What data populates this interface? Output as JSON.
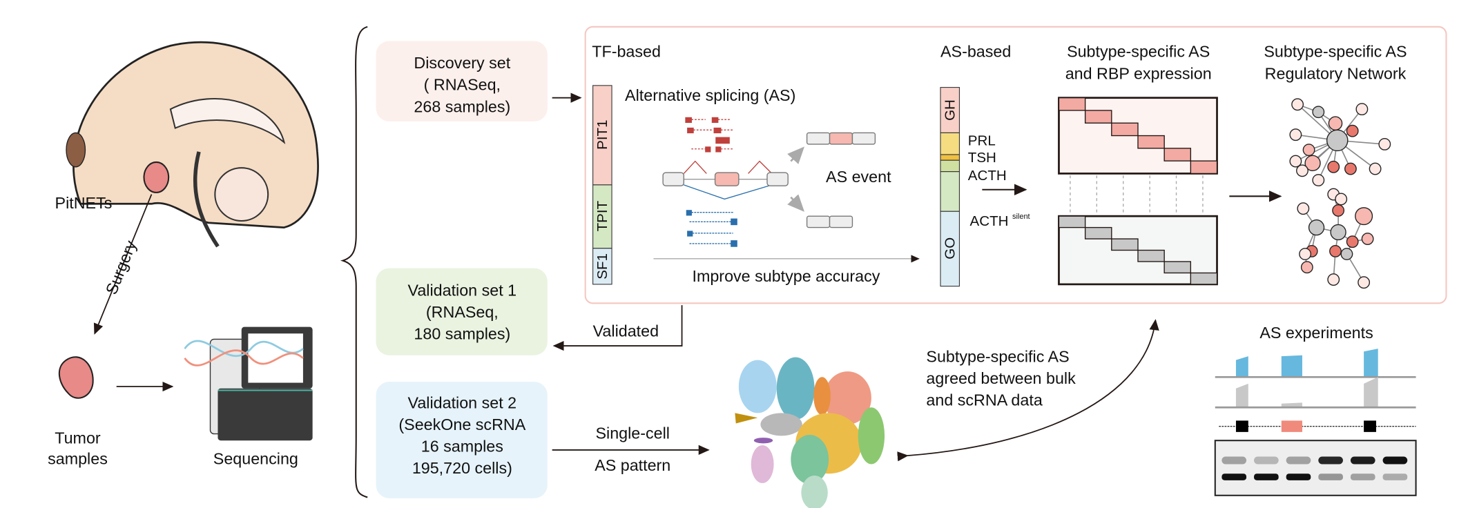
{
  "left": {
    "tumor_site_label": "PitNETs",
    "surgery_label": "Surgery",
    "tumor_label": [
      "Tumor",
      "samples"
    ],
    "sequencing_label": "Sequencing"
  },
  "datasets": [
    {
      "lines": [
        "Discovery set",
        "( RNASeq,",
        "268 samples)"
      ],
      "color": "#fcf0ec"
    },
    {
      "lines": [
        "Validation set 1",
        "(RNASeq,",
        "180 samples)"
      ],
      "color": "#eaf3e0"
    },
    {
      "lines": [
        "Validation set 2",
        "(SeekOne scRNA",
        "16 samples",
        "195,720 cells)"
      ],
      "color": "#e6f3fa"
    }
  ],
  "panel": {
    "tf_title": "TF-based",
    "tf_bar": [
      {
        "label": "PIT1",
        "color": "#f8d0c8"
      },
      {
        "label": "TPIT",
        "color": "#d5e8c4"
      },
      {
        "label": "SF1",
        "color": "#dcecf5"
      }
    ],
    "as_title": "Alternative splicing (AS)",
    "as_event_label": "AS event",
    "improve_label": "Improve subtype accuracy",
    "as_based_title": "AS-based",
    "as_bar": [
      {
        "label": "GH",
        "color": "#f8d0c8"
      },
      {
        "label": "PRL",
        "color": "#f5dc80"
      },
      {
        "label": "TSH",
        "color": "#f0c040"
      },
      {
        "label": "ACTH",
        "color": "#d0e0a0"
      },
      {
        "label": "ACTH",
        "sup": "silent",
        "color": "#d5e8c4"
      },
      {
        "label": "GO",
        "color": "#dcecf5"
      }
    ],
    "rbp_title": [
      "Subtype-specific AS",
      "and RBP expression"
    ],
    "network_title": [
      "Subtype-specific AS",
      "Regulatory Network"
    ]
  },
  "flow": {
    "validated_label": "Validated",
    "single_cell_label": [
      "Single-cell",
      "AS pattern"
    ],
    "agreement_label": [
      "Subtype-specific AS",
      "agreed between bulk",
      "and scRNA data"
    ],
    "experiments_title": "AS experiments"
  },
  "colors": {
    "accent_red": "#e8786c",
    "blue": "#2a6fad",
    "panel_border": "#f5c6c0",
    "coverage_blue": "#66b8de"
  }
}
